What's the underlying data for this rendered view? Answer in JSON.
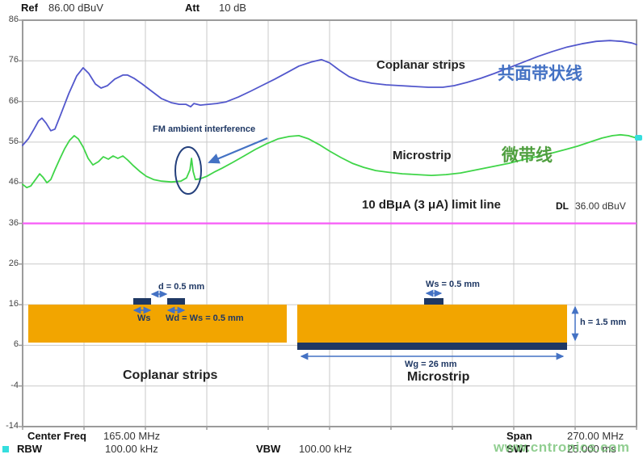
{
  "header": {
    "ref_label": "Ref",
    "ref_value": "86.00 dBuV",
    "att_label": "Att",
    "att_value": "10 dB"
  },
  "annotations": {
    "coplanar_curve_label": "Coplanar strips",
    "coplanar_curve_label_cn": "共面带状线",
    "microstrip_curve_label": "Microstrip",
    "microstrip_curve_label_cn": "微带线",
    "limit_line_label": "10 dBμA (3 μA) limit line",
    "dl_label": "DL",
    "dl_value": "36.00 dBuV",
    "fm_note": "FM ambient interference"
  },
  "diagrams": {
    "coplanar": {
      "title": "Coplanar strips",
      "gap_label": "d = 0.5 mm",
      "ws_label": "Ws",
      "wd_label": "Wd = Ws = 0.5 mm"
    },
    "microstrip": {
      "title": "Microstrip",
      "ws_label": "Ws = 0.5 mm",
      "h_label": "h = 1.5 mm",
      "wg_label": "Wg = 26 mm"
    }
  },
  "status_bar": {
    "center_freq_label": "Center Freq",
    "center_freq_value": "165.00 MHz",
    "span_label": "Span",
    "span_value": "270.00 MHz",
    "rbw_label": "RBW",
    "rbw_value": "100.00 kHz",
    "vbw_label": "VBW",
    "vbw_value": "100.00 kHz",
    "swt_label": "SWT",
    "swt_value": "25.000 ms"
  },
  "watermark": "www.cntronics.com",
  "colors": {
    "coplanar_curve": "#5257cc",
    "microstrip_curve": "#3fd548",
    "limit_line": "#f75bf7",
    "substrate_orange": "#f2a500",
    "conductor_navy": "#1f3864",
    "dimension_blue": "#4472c4",
    "marker_cyan": "#35dede"
  },
  "chart_data": {
    "type": "line",
    "title": "",
    "xlabel": "",
    "ylabel": "dBuV",
    "x_range_mhz": [
      30,
      300
    ],
    "x_divisions": 10,
    "y_range_dbuv": [
      -14,
      86
    ],
    "y_ticks": [
      86,
      76,
      66,
      56,
      46,
      36,
      26,
      16,
      6,
      -4,
      -14
    ],
    "grid": true,
    "limit_line": {
      "label": "10 dBμA (3 μA) limit line",
      "value_dbuv": 36,
      "color": "#f75bf7"
    },
    "series": [
      {
        "name": "Coplanar strips",
        "color": "#5257cc",
        "points": [
          [
            30,
            55.2
          ],
          [
            32.5,
            56.8
          ],
          [
            35,
            59.2
          ],
          [
            37,
            61.2
          ],
          [
            38.5,
            61.9
          ],
          [
            40.3,
            60.7
          ],
          [
            42.4,
            58.8
          ],
          [
            44.2,
            59.2
          ],
          [
            46.7,
            62.7
          ],
          [
            50.3,
            67.9
          ],
          [
            53.8,
            72.3
          ],
          [
            56.6,
            74.3
          ],
          [
            59.1,
            72.9
          ],
          [
            62,
            70.3
          ],
          [
            64.5,
            69.3
          ],
          [
            67.3,
            69.9
          ],
          [
            70.5,
            71.5
          ],
          [
            74.1,
            72.5
          ],
          [
            76.2,
            72.5
          ],
          [
            79,
            71.7
          ],
          [
            82.6,
            70.3
          ],
          [
            86.8,
            68.5
          ],
          [
            91.1,
            66.7
          ],
          [
            95.4,
            65.7
          ],
          [
            98.9,
            65.3
          ],
          [
            101.8,
            65.3
          ],
          [
            103.9,
            64.7
          ],
          [
            105.3,
            65.5
          ],
          [
            108.2,
            65.1
          ],
          [
            111.7,
            65.3
          ],
          [
            115.3,
            65.5
          ],
          [
            119.5,
            65.9
          ],
          [
            124.9,
            67.1
          ],
          [
            130.2,
            68.5
          ],
          [
            135.5,
            70
          ],
          [
            140.9,
            71.5
          ],
          [
            146.2,
            73.1
          ],
          [
            151.5,
            74.7
          ],
          [
            156.9,
            75.7
          ],
          [
            161.5,
            76.3
          ],
          [
            165,
            75.5
          ],
          [
            169.3,
            73.7
          ],
          [
            173.6,
            72.1
          ],
          [
            178.2,
            71.1
          ],
          [
            183.5,
            70.5
          ],
          [
            189.9,
            70.1
          ],
          [
            196,
            69.9
          ],
          [
            202,
            69.7
          ],
          [
            208.4,
            69.5
          ],
          [
            214.8,
            69.5
          ],
          [
            219.8,
            69.9
          ],
          [
            225.4,
            70.7
          ],
          [
            231.5,
            71.7
          ],
          [
            237.5,
            72.9
          ],
          [
            243.9,
            74.3
          ],
          [
            250.3,
            75.7
          ],
          [
            256.7,
            77.1
          ],
          [
            263.1,
            78.3
          ],
          [
            269.5,
            79.4
          ],
          [
            275.9,
            80.2
          ],
          [
            282.3,
            80.8
          ],
          [
            288.3,
            81
          ],
          [
            293.6,
            80.8
          ],
          [
            297.9,
            80.4
          ],
          [
            300,
            80
          ]
        ]
      },
      {
        "name": "Microstrip",
        "color": "#3fd548",
        "points": [
          [
            30,
            45.6
          ],
          [
            31.8,
            44.8
          ],
          [
            33.6,
            45.2
          ],
          [
            35.7,
            46.8
          ],
          [
            37.5,
            48.2
          ],
          [
            38.9,
            47.4
          ],
          [
            40.7,
            46
          ],
          [
            42.4,
            46.8
          ],
          [
            44.2,
            49.2
          ],
          [
            46.3,
            51.8
          ],
          [
            48.5,
            54.4
          ],
          [
            50.6,
            56.4
          ],
          [
            52.7,
            57.6
          ],
          [
            54.5,
            56.8
          ],
          [
            56.6,
            54.8
          ],
          [
            58.8,
            52
          ],
          [
            60.9,
            50.4
          ],
          [
            63.4,
            51.2
          ],
          [
            65.5,
            52.4
          ],
          [
            67.7,
            51.8
          ],
          [
            69.8,
            52.6
          ],
          [
            71.9,
            52
          ],
          [
            74.1,
            52.6
          ],
          [
            76.2,
            51.6
          ],
          [
            78.7,
            50.2
          ],
          [
            81.5,
            48.8
          ],
          [
            84.4,
            47.6
          ],
          [
            87.6,
            46.8
          ],
          [
            91.1,
            46.4
          ],
          [
            95.4,
            46.2
          ],
          [
            99.6,
            46.4
          ],
          [
            102.1,
            47.2
          ],
          [
            103.6,
            49.2
          ],
          [
            104.3,
            52
          ],
          [
            105,
            48.8
          ],
          [
            106,
            46.8
          ],
          [
            108.2,
            47
          ],
          [
            111,
            47.6
          ],
          [
            114.2,
            48.6
          ],
          [
            117.8,
            49.6
          ],
          [
            122.4,
            51
          ],
          [
            127.4,
            52.6
          ],
          [
            132.3,
            54.2
          ],
          [
            137.3,
            55.6
          ],
          [
            142.3,
            56.8
          ],
          [
            147.3,
            57.4
          ],
          [
            151.5,
            57.6
          ],
          [
            155.8,
            56.8
          ],
          [
            160.4,
            55.4
          ],
          [
            165,
            53.8
          ],
          [
            170,
            52.2
          ],
          [
            175,
            50.8
          ],
          [
            180,
            49.8
          ],
          [
            185.3,
            49
          ],
          [
            190.6,
            48.6
          ],
          [
            197,
            48.2
          ],
          [
            203.4,
            48
          ],
          [
            209.8,
            47.8
          ],
          [
            216.2,
            48
          ],
          [
            222.6,
            48.4
          ],
          [
            229.7,
            49.2
          ],
          [
            236.8,
            50
          ],
          [
            243.9,
            50.8
          ],
          [
            251,
            51.8
          ],
          [
            257.4,
            52.6
          ],
          [
            263.4,
            53.4
          ],
          [
            268.8,
            54.2
          ],
          [
            274.1,
            55
          ],
          [
            279.4,
            56
          ],
          [
            284.8,
            57
          ],
          [
            289.4,
            57.6
          ],
          [
            292.9,
            57.8
          ],
          [
            296.4,
            57.6
          ],
          [
            300,
            57
          ]
        ]
      }
    ]
  }
}
